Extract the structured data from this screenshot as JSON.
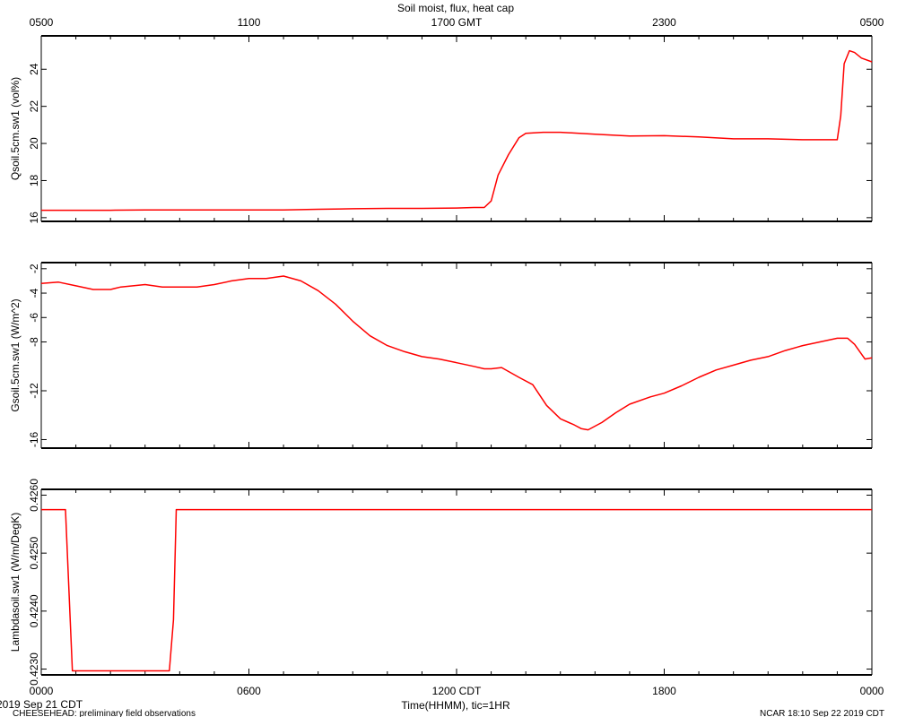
{
  "title": "Soil moist, flux, heat cap",
  "top_axis": {
    "ticks": [
      "0500",
      "1100",
      "1700 GMT",
      "2300",
      "0500"
    ]
  },
  "bottom_axis": {
    "ticks": [
      "0000",
      "0600",
      "1200 CDT",
      "1800",
      "0000"
    ],
    "label": "Time(HHMM), tic=1HR"
  },
  "footer": {
    "date_start": "2019 Sep 21 CDT",
    "project": "CHEESEHEAD: preliminary field observations",
    "stamp": "NCAR 18:10 Sep 22 2019 CDT"
  },
  "colors": {
    "series": "#ff0000",
    "axes": "#000000"
  },
  "chart_data": [
    {
      "type": "line",
      "ylabel": "Qsoil.5cm.sw1 (vol%)",
      "ylim": [
        15.8,
        25.8
      ],
      "yticks": [
        16,
        18,
        20,
        22,
        24
      ],
      "ytick_labels": [
        "16",
        "18",
        "20",
        "22",
        "24"
      ],
      "x_hours_cdt": [
        0,
        1,
        2,
        3,
        4,
        5,
        6,
        7,
        8,
        9,
        10,
        11,
        12,
        12.5,
        12.8,
        13.0,
        13.2,
        13.5,
        13.8,
        14.0,
        14.5,
        15.0,
        16.0,
        17.0,
        18.0,
        19.0,
        20.0,
        21.0,
        22.0,
        22.7,
        23.0,
        23.1,
        23.2,
        23.35,
        23.5,
        23.7,
        24.0
      ],
      "y": [
        16.4,
        16.4,
        16.4,
        16.42,
        16.42,
        16.42,
        16.42,
        16.42,
        16.45,
        16.48,
        16.5,
        16.5,
        16.52,
        16.55,
        16.55,
        16.9,
        18.3,
        19.4,
        20.3,
        20.55,
        20.6,
        20.6,
        20.5,
        20.4,
        20.42,
        20.35,
        20.25,
        20.25,
        20.2,
        20.2,
        20.2,
        21.5,
        24.3,
        25.0,
        24.9,
        24.6,
        24.4
      ]
    },
    {
      "type": "line",
      "ylabel": "Gsoil.5cm.sw1 (W/m^2)",
      "ylim": [
        -16.7,
        -1.5
      ],
      "yticks": [
        -16,
        -12,
        -8,
        -6,
        -4,
        -2
      ],
      "ytick_labels": [
        "-16",
        "-12",
        "-8",
        "-6",
        "-4",
        "-2"
      ],
      "x_hours_cdt": [
        0,
        0.5,
        1.0,
        1.5,
        2.0,
        2.3,
        3.0,
        3.5,
        4.0,
        4.5,
        5.0,
        5.5,
        6.0,
        6.5,
        7.0,
        7.5,
        8.0,
        8.5,
        9.0,
        9.5,
        10.0,
        10.5,
        11.0,
        11.5,
        12.0,
        12.5,
        12.8,
        13.0,
        13.3,
        13.8,
        14.2,
        14.6,
        15.0,
        15.4,
        15.6,
        15.8,
        16.2,
        16.6,
        17.0,
        17.6,
        18.0,
        18.5,
        19.0,
        19.5,
        20.0,
        20.5,
        21.0,
        21.5,
        22.0,
        22.5,
        23.0,
        23.3,
        23.5,
        23.8,
        24.0
      ],
      "y": [
        -3.2,
        -3.1,
        -3.4,
        -3.7,
        -3.7,
        -3.5,
        -3.3,
        -3.5,
        -3.5,
        -3.5,
        -3.3,
        -3.0,
        -2.8,
        -2.8,
        -2.6,
        -3.0,
        -3.8,
        -4.9,
        -6.3,
        -7.5,
        -8.3,
        -8.8,
        -9.2,
        -9.4,
        -9.7,
        -10.0,
        -10.2,
        -10.2,
        -10.1,
        -10.9,
        -11.5,
        -13.2,
        -14.3,
        -14.8,
        -15.1,
        -15.2,
        -14.6,
        -13.8,
        -13.1,
        -12.5,
        -12.2,
        -11.6,
        -10.9,
        -10.3,
        -9.9,
        -9.5,
        -9.2,
        -8.7,
        -8.3,
        -8.0,
        -7.7,
        -7.7,
        -8.2,
        -9.4,
        -9.3
      ]
    },
    {
      "type": "line",
      "ylabel": "Lambdasoil.sw1 (W/m/DegK)",
      "ylim": [
        0.4229,
        0.4261
      ],
      "yticks": [
        0.423,
        0.424,
        0.425,
        0.426
      ],
      "ytick_labels": [
        "0.4230",
        "0.4240",
        "0.4250",
        "0.4260"
      ],
      "x_hours_cdt": [
        0,
        0.7,
        0.9,
        3.7,
        3.82,
        3.9,
        24.0
      ],
      "y": [
        0.42575,
        0.42575,
        0.42297,
        0.42297,
        0.42385,
        0.42575,
        0.42575
      ]
    }
  ]
}
